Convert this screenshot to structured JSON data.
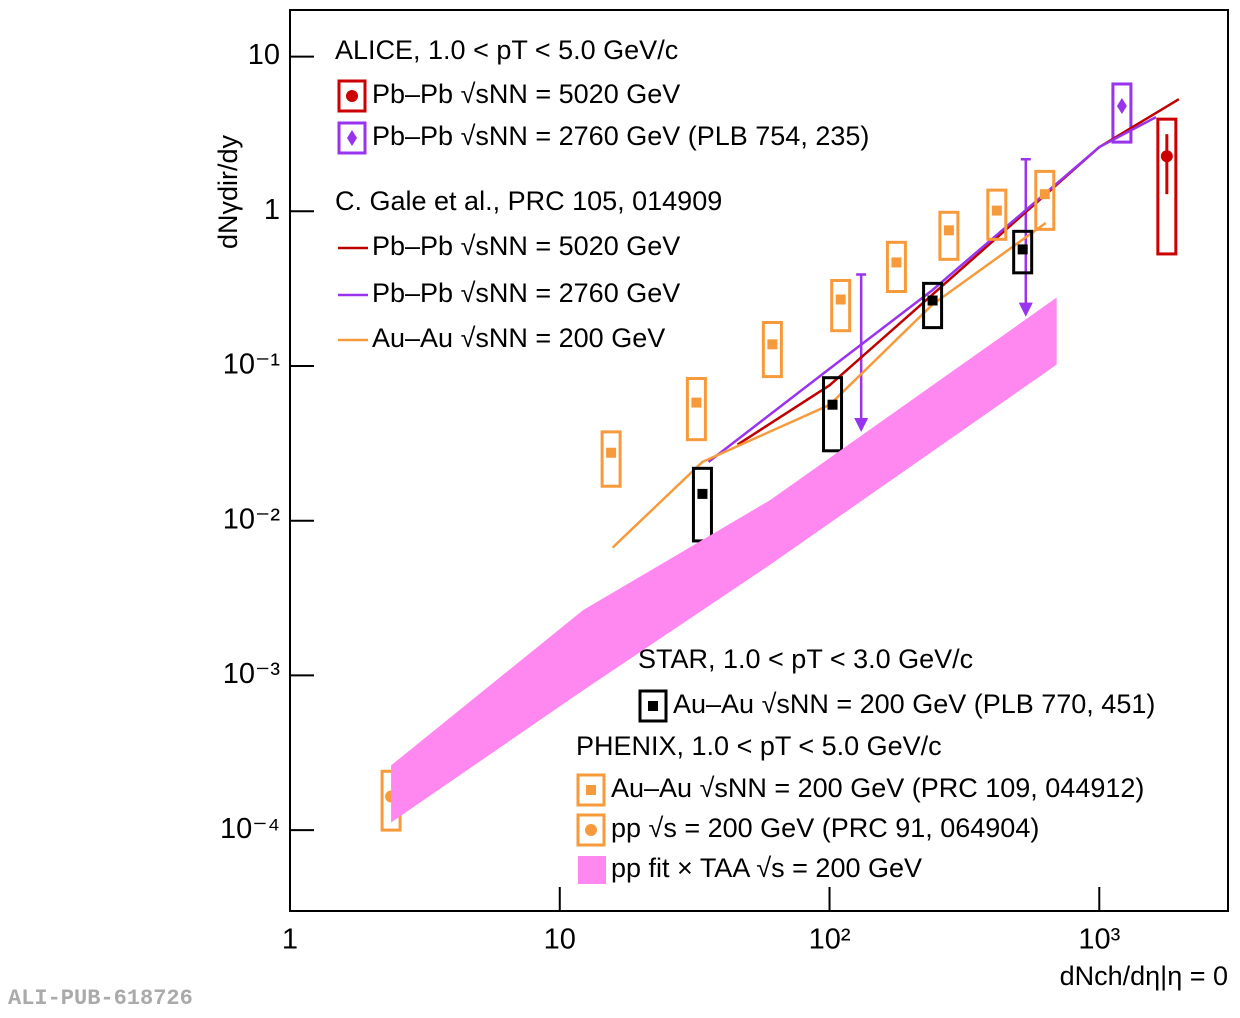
{
  "chart_data": {
    "type": "scatter",
    "x_label": "dNch/dη|η = 0",
    "y_label": "dNγdir/dy",
    "x_log": true,
    "y_log": true,
    "xlim": [
      1,
      3000
    ],
    "ylim": [
      3e-05,
      20
    ],
    "xticks": [
      1,
      10,
      {
        "value": 100,
        "label": "10²"
      },
      {
        "value": 1000,
        "label": "10³"
      }
    ],
    "yticks": [
      {
        "value": 0.0001,
        "label": "10⁻⁴"
      },
      {
        "value": 0.001,
        "label": "10⁻³"
      },
      {
        "value": 0.01,
        "label": "10⁻²"
      },
      {
        "value": 0.1,
        "label": "10⁻¹"
      },
      1,
      10
    ],
    "annotations": [
      "ALICE, 1.0 < pT < 5.0 GeV/c",
      "C. Gale et al., PRC 105, 014909",
      "STAR, 1.0 < pT < 3.0 GeV/c",
      "PHENIX, 1.0 < pT < 5.0 GeV/c"
    ],
    "watermark": "ALI-PUB-618726",
    "series": [
      {
        "name": "Pb–Pb √sNN = 5020 GeV",
        "kind": "marker",
        "marker": "circle",
        "color": "#cc0000",
        "x": [
          1780
        ],
        "values": [
          2.27
        ],
        "sys_low": [
          0.53
        ],
        "sys_high": [
          3.94
        ],
        "stat_low": [
          1.29
        ],
        "stat_high": [
          3.15
        ]
      },
      {
        "name": "Pb–Pb √sNN = 2760 GeV (PLB 754, 235)",
        "kind": "marker",
        "marker": "diamond",
        "color": "#9933ee",
        "x": [
          1213
        ],
        "values": [
          4.79
        ],
        "sys_low": [
          2.8
        ],
        "sys_high": [
          6.65
        ]
      },
      {
        "kind": "upper_limit",
        "color": "#9933ee",
        "x": [
          131,
          534
        ],
        "values": [
          0.39,
          2.17
        ]
      },
      {
        "name": "Pb–Pb √sNN = 5020 GeV",
        "kind": "line",
        "color": "#c00000",
        "x": [
          45.6,
          100,
          241,
          1000,
          1972
        ],
        "values": [
          0.031,
          0.075,
          0.29,
          2.6,
          5.3
        ]
      },
      {
        "name": "Pb–Pb √sNN = 2760 GeV",
        "kind": "line",
        "color": "#9933ee",
        "x": [
          35.6,
          100,
          241,
          1000,
          1622
        ],
        "values": [
          0.024,
          0.096,
          0.31,
          2.6,
          4.06
        ]
      },
      {
        "name": "Au–Au √sNN = 200 GeV",
        "kind": "line",
        "color": "#f79a3b",
        "x": [
          15.7,
          33.8,
          100,
          241,
          633
        ],
        "values": [
          0.0067,
          0.024,
          0.056,
          0.25,
          0.84
        ]
      },
      {
        "name": "Au–Au √sNN = 200 GeV (PLB 770, 451)",
        "kind": "marker",
        "marker": "square",
        "color": "#000000",
        "x": [
          33.8,
          102.6,
          241,
          520
        ],
        "values": [
          0.0149,
          0.0562,
          0.265,
          0.567
        ],
        "sys_low": [
          0.0074,
          0.0283,
          0.177,
          0.4
        ],
        "sys_high": [
          0.0218,
          0.084,
          0.342,
          0.742
        ]
      },
      {
        "name": "Au–Au √sNN = 200 GeV (PRC 109, 044912)",
        "kind": "marker",
        "marker": "square",
        "color": "#f79a3b",
        "x": [
          15.5,
          32.1,
          61.4,
          110,
          177,
          277,
          417,
          628
        ],
        "values": [
          0.0275,
          0.058,
          0.138,
          0.269,
          0.467,
          0.753,
          1.01,
          1.29
        ],
        "sys_low": [
          0.0167,
          0.0334,
          0.0854,
          0.169,
          0.303,
          0.489,
          0.659,
          0.764
        ],
        "sys_high": [
          0.0375,
          0.083,
          0.191,
          0.357,
          0.63,
          0.985,
          1.37,
          1.81
        ]
      },
      {
        "name": "pp √s = 200 GeV (PRC 91, 064904)",
        "kind": "marker",
        "marker": "circle",
        "color": "#f79a3b",
        "x": [
          2.37
        ],
        "values": [
          0.000165
        ],
        "sys_low": [
          0.0001
        ],
        "sys_high": [
          0.00024
        ]
      },
      {
        "name": "pp fit × TAA √s = 200 GeV",
        "kind": "band",
        "color": "#ff88f0",
        "x": [
          2.37,
          12.2,
          60.3,
          695
        ],
        "values_low": [
          0.000112,
          0.0008,
          0.0052,
          0.102
        ],
        "values_high": [
          0.000262,
          0.00264,
          0.0136,
          0.277
        ]
      }
    ]
  }
}
